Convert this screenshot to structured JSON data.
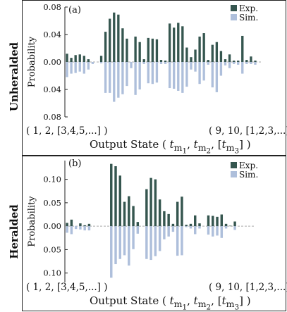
{
  "row_labels": [
    "Unheralded",
    "Heralded"
  ],
  "legend": {
    "exp": "Exp.",
    "sim": "Sim."
  },
  "colors": {
    "exp": "#35564f",
    "sim": "#aebfdb",
    "baseline": "#aaaaaa"
  },
  "axis_first_state": "( 1, 2, [3,4,5,...] )",
  "axis_last_state": "( 9, 10, [1,2,3,...] )",
  "xlabel_prefix": "Output State ( ",
  "xlabel_suffix": " )",
  "chart_data": [
    {
      "type": "bar",
      "panel": "(a)",
      "ylabel": "Probability",
      "ylim": [
        -0.08,
        0.08
      ],
      "yticks": [
        0.08,
        0.04,
        0.0,
        0.04,
        0.08
      ],
      "series": [
        {
          "name": "Exp.",
          "values": [
            0.012,
            0.006,
            0.01,
            0.011,
            0.009,
            0.004,
            0.0,
            0.0,
            0.009,
            0.044,
            0.063,
            0.072,
            0.069,
            0.049,
            0.034,
            0.0,
            0.037,
            0.029,
            0.004,
            0.035,
            0.034,
            0.033,
            0.003,
            0.002,
            0.056,
            0.05,
            0.057,
            0.052,
            0.021,
            0.007,
            0.018,
            0.037,
            0.042,
            0.003,
            0.025,
            0.029,
            0.016,
            0.004,
            0.011,
            0.002,
            0.002,
            0.038,
            0.003,
            0.008,
            0.002
          ]
        },
        {
          "name": "Sim.",
          "values": [
            0.022,
            0.017,
            0.016,
            0.014,
            0.017,
            0.011,
            0.003,
            0.0,
            0.002,
            0.045,
            0.045,
            0.058,
            0.052,
            0.047,
            0.035,
            0.009,
            0.048,
            0.04,
            0.003,
            0.031,
            0.032,
            0.03,
            0.003,
            0.003,
            0.038,
            0.039,
            0.042,
            0.045,
            0.036,
            0.011,
            0.014,
            0.032,
            0.027,
            0.004,
            0.037,
            0.044,
            0.02,
            0.005,
            0.009,
            0.003,
            0.004,
            0.017,
            0.003,
            0.003,
            0.004
          ]
        }
      ]
    },
    {
      "type": "bar",
      "panel": "(b)",
      "ylabel": "Probability",
      "ylim": [
        -0.12,
        0.14
      ],
      "yticks": [
        0.1,
        0.05,
        0.0,
        0.05,
        0.1
      ],
      "series": [
        {
          "name": "Exp.",
          "values": [
            0.007,
            0.014,
            0.0,
            0.006,
            0.002,
            0.005,
            0.0,
            0.0,
            0.0,
            0.0,
            0.133,
            0.128,
            0.108,
            0.052,
            0.064,
            0.043,
            0.009,
            0.0,
            0.079,
            0.103,
            0.1,
            0.057,
            0.032,
            0.026,
            0.005,
            0.052,
            0.063,
            0.003,
            0.005,
            0.023,
            0.006,
            0.0,
            0.023,
            0.022,
            0.02,
            0.025,
            0.005,
            0.001,
            0.01,
            0.0,
            0.0,
            0.0
          ]
        },
        {
          "name": "Sim.",
          "values": [
            0.014,
            0.017,
            0.006,
            0.007,
            0.009,
            0.009,
            0.0,
            0.0,
            0.0,
            0.0,
            0.11,
            0.081,
            0.07,
            0.062,
            0.084,
            0.049,
            0.016,
            0.0,
            0.07,
            0.072,
            0.064,
            0.053,
            0.028,
            0.022,
            0.012,
            0.063,
            0.062,
            0.002,
            0.005,
            0.017,
            0.005,
            0.0,
            0.018,
            0.022,
            0.02,
            0.025,
            0.005,
            0.0,
            0.008,
            0.0,
            0.0,
            0.0
          ]
        }
      ]
    }
  ]
}
